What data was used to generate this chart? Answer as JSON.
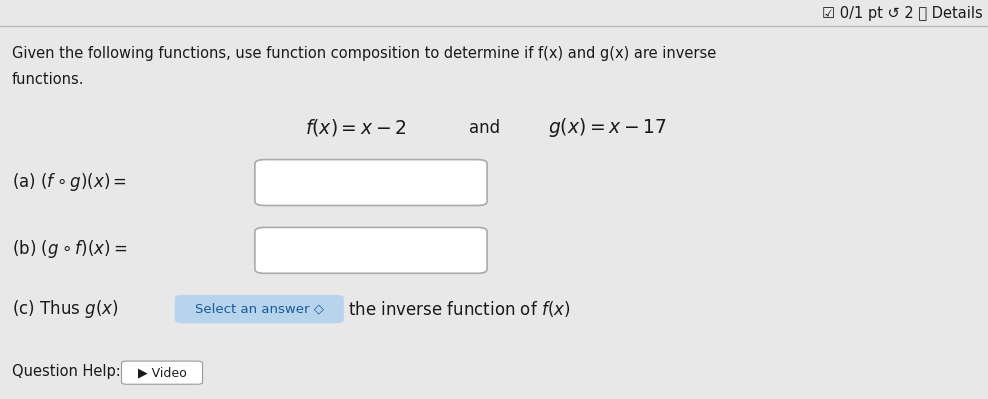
{
  "bg_color": "#e8e8e8",
  "header_text": "☑ 0/1 pt ↺ 2 ⓘ Details",
  "header_fontsize": 10.5,
  "instruction_line1": "Given the following functions, use function composition to determine if f(x) and g(x) are inverse",
  "instruction_line2": "functions.",
  "part_a_label": "(a) $(f \\circ g)(x) =$",
  "part_b_label": "(b) $(g \\circ f)(x) =$",
  "part_c_label": "(c) Thus $g(x)$",
  "part_c_button": "Select an answer ◇",
  "part_c_end": "the inverse function of $f(x)$",
  "question_help": "Question Help:",
  "video_text": "▶ Video",
  "select_btn_color": "#b8d4ec",
  "select_btn_text_color": "#1a5a9a",
  "text_color": "#1a1a1a",
  "line_color": "#bbbbbb",
  "box_edge_color": "#aaaaaa",
  "white": "#ffffff"
}
